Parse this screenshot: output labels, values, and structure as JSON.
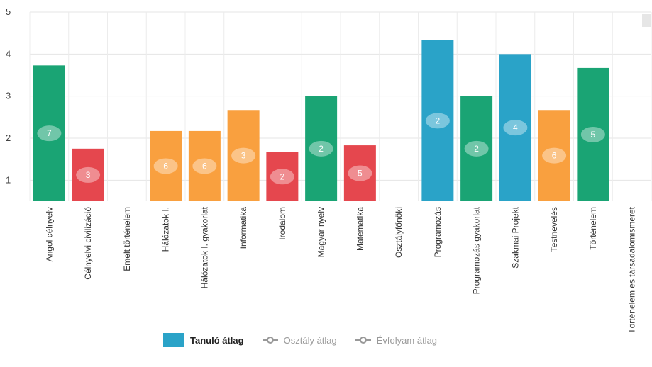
{
  "chart_data": {
    "type": "bar",
    "ylim": [
      0.5,
      5
    ],
    "yticks": [
      1,
      2,
      3,
      4,
      5
    ],
    "categories": [
      "Angol célnyelv",
      "Célnyelvi civilizáció",
      "Emelt történelem",
      "Hálózatok I.",
      "Hálózatok I. gyakorlat",
      "Informatika",
      "Irodalom",
      "Magyar nyelv",
      "Matematika",
      "Osztályfőnöki",
      "Programozás",
      "Programozás gyakorlat",
      "Szakmai Projekt",
      "Testnevelés",
      "Történelem",
      "Történelem és társadalomismeret"
    ],
    "series": [
      {
        "name": "Tanuló átlag",
        "values": [
          3.73,
          1.75,
          null,
          2.17,
          2.17,
          2.67,
          1.67,
          3.0,
          1.83,
          null,
          4.33,
          3.0,
          4.0,
          2.67,
          3.67,
          null
        ],
        "counts": [
          "7",
          "3",
          "",
          "6",
          "6",
          "3",
          "2",
          "2",
          "5",
          "",
          "2",
          "2",
          "4",
          "6",
          "5",
          ""
        ]
      }
    ],
    "bar_colors": [
      "#1aa474",
      "#e5474e",
      "",
      "#f9a03f",
      "#f9a03f",
      "#f9a03f",
      "#e5474e",
      "#1aa474",
      "#e5474e",
      "",
      "#2aa3c8",
      "#1aa474",
      "#2aa3c8",
      "#f9a03f",
      "#1aa474",
      ""
    ],
    "legend": [
      {
        "label": "Tanuló átlag",
        "style": "box",
        "color": "#2aa3c8"
      },
      {
        "label": "Osztály átlag",
        "style": "line",
        "color": "#999999"
      },
      {
        "label": "Évfolyam átlag",
        "style": "line",
        "color": "#999999"
      }
    ]
  }
}
